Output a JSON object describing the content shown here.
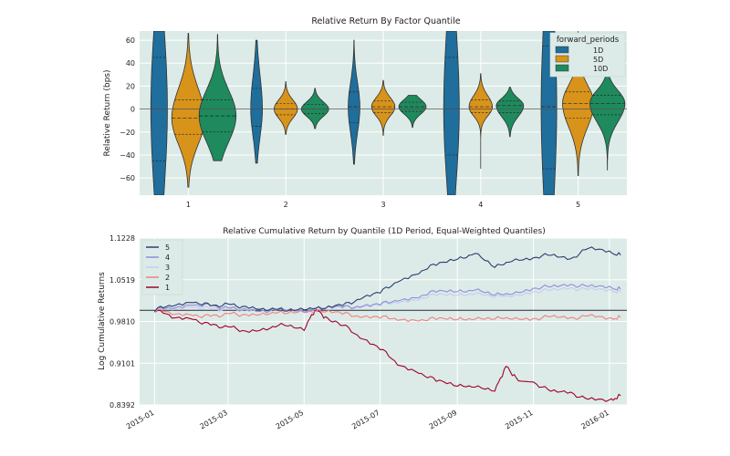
{
  "chart_data": [
    {
      "type": "violin",
      "title": "Relative Return By Factor Quantile",
      "xlabel": "",
      "ylabel": "Relative Return (bps)",
      "categories": [
        "1",
        "2",
        "3",
        "4",
        "5"
      ],
      "ylim": [
        -75,
        68
      ],
      "yticks": [
        -60,
        -40,
        -20,
        0,
        20,
        40,
        60
      ],
      "grid": true,
      "legend": {
        "title": "forward_periods",
        "position": "top-right"
      },
      "series": [
        {
          "name": "1D",
          "color": "#1f6e9c",
          "violins": [
            {
              "min": -75,
              "max": 68,
              "q1": -45,
              "median": 0,
              "q3": 45,
              "max_half_width": 0.085
            },
            {
              "min": -47,
              "max": 60,
              "q1": -15,
              "median": 0,
              "q3": 18,
              "max_half_width": 0.06
            },
            {
              "min": -48,
              "max": 60,
              "q1": -12,
              "median": 2,
              "q3": 15,
              "max_half_width": 0.06
            },
            {
              "min": -75,
              "max": 68,
              "q1": -40,
              "median": 0,
              "q3": 45,
              "max_half_width": 0.08
            },
            {
              "min": -75,
              "max": 68,
              "q1": -52,
              "median": 2,
              "q3": 55,
              "max_half_width": 0.08
            }
          ]
        },
        {
          "name": "5D",
          "color": "#d8931b",
          "violins": [
            {
              "min": -68,
              "max": 66,
              "q1": -22,
              "median": -8,
              "q3": 8,
              "max_half_width": 0.17
            },
            {
              "min": -22,
              "max": 24,
              "q1": -5,
              "median": 0,
              "q3": 5,
              "max_half_width": 0.12
            },
            {
              "min": -23,
              "max": 25,
              "q1": -3,
              "median": 2,
              "q3": 7,
              "max_half_width": 0.12
            },
            {
              "min": -52,
              "max": 31,
              "q1": -3,
              "median": 2,
              "q3": 8,
              "max_half_width": 0.12
            },
            {
              "min": -58,
              "max": 68,
              "q1": -8,
              "median": 5,
              "q3": 15,
              "max_half_width": 0.16
            }
          ]
        },
        {
          "name": "10D",
          "color": "#1e8a5e",
          "violins": [
            {
              "min": -45,
              "max": 65,
              "q1": -20,
              "median": -6,
              "q3": 8,
              "max_half_width": 0.19
            },
            {
              "min": -17,
              "max": 18,
              "q1": -4,
              "median": 0,
              "q3": 4,
              "max_half_width": 0.14
            },
            {
              "min": -16,
              "max": 12,
              "q1": -2,
              "median": 2,
              "q3": 6,
              "max_half_width": 0.14
            },
            {
              "min": -24,
              "max": 19,
              "q1": -3,
              "median": 3,
              "q3": 7,
              "max_half_width": 0.14
            },
            {
              "min": -53,
              "max": 34,
              "q1": -5,
              "median": 5,
              "q3": 12,
              "max_half_width": 0.18
            }
          ]
        }
      ]
    },
    {
      "type": "line",
      "title": "Relative Cumulative Return by Quantile (1D Period, Equal-Weighted Quantiles)",
      "xlabel": "",
      "ylabel": "Log Cumulative Returns",
      "ylim": [
        0.8392,
        1.1228
      ],
      "yticks": [
        "0.8392",
        "0.9101",
        "0.9810",
        "1.0519",
        "1.1228"
      ],
      "xlim": [
        "2014-12-20",
        "2016-01-15"
      ],
      "xticks": [
        "2015-01",
        "2015-03",
        "2015-05",
        "2015-07",
        "2015-09",
        "2015-11",
        "2016-01"
      ],
      "baseline": 1.0,
      "grid": true,
      "legend": {
        "position": "top-left"
      },
      "series": [
        {
          "name": "5",
          "color": "#2c3e70",
          "points": [
            [
              "2015-01-01",
              1.0
            ],
            [
              "2015-01-15",
              1.01
            ],
            [
              "2015-02-01",
              1.015
            ],
            [
              "2015-02-15",
              1.008
            ],
            [
              "2015-03-01",
              1.01
            ],
            [
              "2015-03-15",
              1.006
            ],
            [
              "2015-04-01",
              1.003
            ],
            [
              "2015-04-15",
              1.0
            ],
            [
              "2015-05-01",
              1.004
            ],
            [
              "2015-05-15",
              1.002
            ],
            [
              "2015-06-01",
              1.008
            ],
            [
              "2015-06-15",
              1.02
            ],
            [
              "2015-07-01",
              1.03
            ],
            [
              "2015-07-15",
              1.05
            ],
            [
              "2015-08-01",
              1.065
            ],
            [
              "2015-08-15",
              1.078
            ],
            [
              "2015-09-01",
              1.085
            ],
            [
              "2015-09-15",
              1.098
            ],
            [
              "2015-10-01",
              1.072
            ],
            [
              "2015-10-15",
              1.086
            ],
            [
              "2015-11-01",
              1.09
            ],
            [
              "2015-11-15",
              1.094
            ],
            [
              "2015-12-01",
              1.088
            ],
            [
              "2015-12-15",
              1.105
            ],
            [
              "2016-01-01",
              1.098
            ],
            [
              "2016-01-10",
              1.094
            ]
          ]
        },
        {
          "name": "4",
          "color": "#8f8ddc",
          "points": [
            [
              "2015-01-01",
              1.0
            ],
            [
              "2015-01-15",
              1.006
            ],
            [
              "2015-02-01",
              1.01
            ],
            [
              "2015-02-15",
              1.008
            ],
            [
              "2015-03-01",
              1.004
            ],
            [
              "2015-03-15",
              1.002
            ],
            [
              "2015-04-01",
              1.0
            ],
            [
              "2015-04-15",
              1.002
            ],
            [
              "2015-05-01",
              1.0
            ],
            [
              "2015-05-15",
              1.003
            ],
            [
              "2015-06-01",
              1.005
            ],
            [
              "2015-06-15",
              1.007
            ],
            [
              "2015-07-01",
              1.01
            ],
            [
              "2015-07-15",
              1.018
            ],
            [
              "2015-08-01",
              1.024
            ],
            [
              "2015-08-15",
              1.032
            ],
            [
              "2015-09-01",
              1.03
            ],
            [
              "2015-09-15",
              1.036
            ],
            [
              "2015-10-01",
              1.025
            ],
            [
              "2015-10-15",
              1.03
            ],
            [
              "2015-11-01",
              1.038
            ],
            [
              "2015-11-15",
              1.04
            ],
            [
              "2015-12-01",
              1.044
            ],
            [
              "2015-12-15",
              1.04
            ],
            [
              "2016-01-01",
              1.038
            ],
            [
              "2016-01-10",
              1.036
            ]
          ]
        },
        {
          "name": "3",
          "color": "#c9c9f0",
          "points": [
            [
              "2015-01-01",
              1.0
            ],
            [
              "2015-01-15",
              1.004
            ],
            [
              "2015-02-01",
              1.006
            ],
            [
              "2015-02-15",
              1.003
            ],
            [
              "2015-03-01",
              1.002
            ],
            [
              "2015-03-15",
              1.001
            ],
            [
              "2015-04-01",
              1.0
            ],
            [
              "2015-04-15",
              1.001
            ],
            [
              "2015-05-01",
              1.0
            ],
            [
              "2015-05-15",
              1.002
            ],
            [
              "2015-06-01",
              1.004
            ],
            [
              "2015-06-15",
              1.006
            ],
            [
              "2015-07-01",
              1.009
            ],
            [
              "2015-07-15",
              1.015
            ],
            [
              "2015-08-01",
              1.02
            ],
            [
              "2015-08-15",
              1.026
            ],
            [
              "2015-09-01",
              1.024
            ],
            [
              "2015-09-15",
              1.03
            ],
            [
              "2015-10-01",
              1.022
            ],
            [
              "2015-10-15",
              1.026
            ],
            [
              "2015-11-01",
              1.032
            ],
            [
              "2015-11-15",
              1.034
            ],
            [
              "2015-12-01",
              1.038
            ],
            [
              "2015-12-15",
              1.035
            ],
            [
              "2016-01-01",
              1.033
            ],
            [
              "2016-01-10",
              1.031
            ]
          ]
        },
        {
          "name": "2",
          "color": "#f08080",
          "points": [
            [
              "2015-01-01",
              1.0
            ],
            [
              "2015-01-15",
              0.996
            ],
            [
              "2015-02-01",
              0.992
            ],
            [
              "2015-02-15",
              0.99
            ],
            [
              "2015-03-01",
              0.994
            ],
            [
              "2015-03-15",
              0.993
            ],
            [
              "2015-04-01",
              0.996
            ],
            [
              "2015-04-15",
              0.995
            ],
            [
              "2015-05-01",
              0.999
            ],
            [
              "2015-05-15",
              0.997
            ],
            [
              "2015-06-01",
              0.994
            ],
            [
              "2015-06-15",
              0.99
            ],
            [
              "2015-07-01",
              0.988
            ],
            [
              "2015-07-15",
              0.986
            ],
            [
              "2015-08-01",
              0.984
            ],
            [
              "2015-08-15",
              0.985
            ],
            [
              "2015-09-01",
              0.983
            ],
            [
              "2015-09-15",
              0.987
            ],
            [
              "2015-10-01",
              0.985
            ],
            [
              "2015-10-15",
              0.988
            ],
            [
              "2015-11-01",
              0.986
            ],
            [
              "2015-11-15",
              0.989
            ],
            [
              "2015-12-01",
              0.987
            ],
            [
              "2015-12-15",
              0.99
            ],
            [
              "2016-01-01",
              0.985
            ],
            [
              "2016-01-10",
              0.988
            ]
          ]
        },
        {
          "name": "1",
          "color": "#a0002a",
          "points": [
            [
              "2015-01-01",
              1.0
            ],
            [
              "2015-01-15",
              0.99
            ],
            [
              "2015-02-01",
              0.985
            ],
            [
              "2015-02-15",
              0.975
            ],
            [
              "2015-03-01",
              0.972
            ],
            [
              "2015-03-15",
              0.965
            ],
            [
              "2015-04-01",
              0.97
            ],
            [
              "2015-04-15",
              0.975
            ],
            [
              "2015-05-01",
              0.968
            ],
            [
              "2015-05-10",
              1.002
            ],
            [
              "2015-05-20",
              0.985
            ],
            [
              "2015-06-01",
              0.975
            ],
            [
              "2015-06-15",
              0.955
            ],
            [
              "2015-07-01",
              0.935
            ],
            [
              "2015-07-15",
              0.91
            ],
            [
              "2015-08-01",
              0.895
            ],
            [
              "2015-08-15",
              0.88
            ],
            [
              "2015-09-01",
              0.87
            ],
            [
              "2015-09-15",
              0.872
            ],
            [
              "2015-10-01",
              0.863
            ],
            [
              "2015-10-10",
              0.905
            ],
            [
              "2015-10-20",
              0.88
            ],
            [
              "2015-11-01",
              0.878
            ],
            [
              "2015-11-15",
              0.862
            ],
            [
              "2015-12-01",
              0.86
            ],
            [
              "2015-12-15",
              0.848
            ],
            [
              "2016-01-01",
              0.846
            ],
            [
              "2016-01-10",
              0.855
            ]
          ]
        }
      ]
    }
  ]
}
